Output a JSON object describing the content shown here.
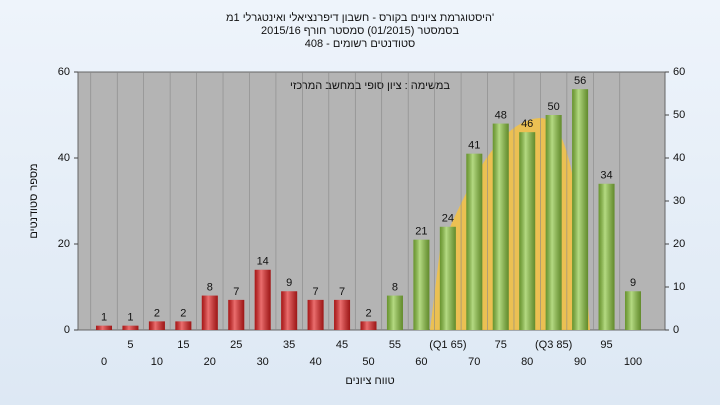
{
  "chart_data": {
    "type": "bar",
    "title": "היסטוגרמת ציונים בקורס - חשבון דיפרנציאלי ואינטגרלי 1מ'",
    "subtitle": "בסמסטר (01/2015) סמסטר חורף 2015/16",
    "subtitle2": "סטודנטים רשומים - 408",
    "annotation": "במשימה : ציון סופי במחשב המרכזי",
    "x_label": "טווח ציונים",
    "y_label": "מספר סטודנטים",
    "categories": [
      "0",
      "5",
      "10",
      "15",
      "20",
      "25",
      "30",
      "35",
      "40",
      "45",
      "50",
      "55",
      "60",
      "(Q1 65)",
      "70",
      "75",
      "80",
      "(Q3 85)",
      "90",
      "95",
      "100"
    ],
    "values": [
      1,
      1,
      2,
      2,
      8,
      7,
      14,
      9,
      7,
      7,
      2,
      8,
      21,
      24,
      41,
      48,
      46,
      50,
      56,
      34,
      9
    ],
    "colors": [
      "#e02020",
      "#e02020",
      "#e02020",
      "#e02020",
      "#e02020",
      "#e02020",
      "#e02020",
      "#e02020",
      "#e02020",
      "#e02020",
      "#e02020",
      "#8cc63f",
      "#8cc63f",
      "#8cc63f",
      "#8cc63f",
      "#8cc63f",
      "#8cc63f",
      "#8cc63f",
      "#8cc63f",
      "#8cc63f",
      "#8cc63f"
    ],
    "ylim": [
      0,
      60
    ],
    "yticks": [
      0,
      20,
      40,
      60
    ],
    "y2lim": [
      0,
      60
    ],
    "y2ticks": [
      0,
      10,
      20,
      30,
      40,
      50,
      60
    ]
  }
}
